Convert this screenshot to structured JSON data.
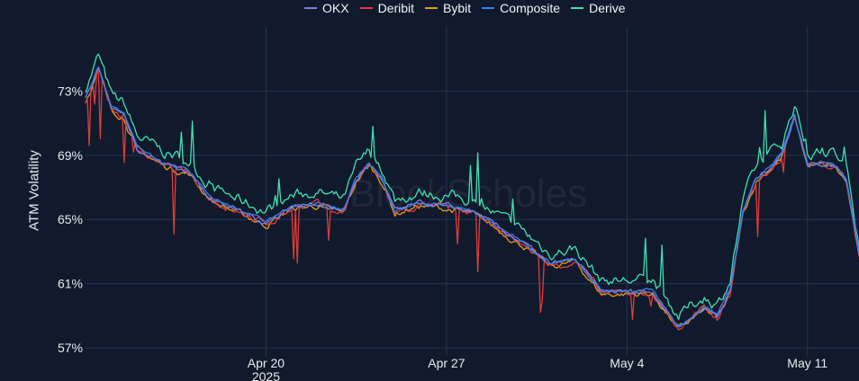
{
  "chart_data": {
    "type": "line",
    "ylabel": "ATM Volatility",
    "y_unit": "%",
    "ylim": [
      56.5,
      77
    ],
    "y_ticks": [
      57,
      61,
      65,
      69,
      73
    ],
    "y_tick_labels": [
      "57%",
      "61%",
      "65%",
      "69%",
      "73%"
    ],
    "xlim": [
      "2025-04-13",
      "2025-05-13"
    ],
    "x_ticks": [
      {
        "date": "2025-04-20",
        "label": "Apr 20",
        "sublabel": "2025"
      },
      {
        "date": "2025-04-27",
        "label": "Apr 27",
        "sublabel": ""
      },
      {
        "date": "2025-05-04",
        "label": "May 4",
        "sublabel": ""
      },
      {
        "date": "2025-05-11",
        "label": "May 11",
        "sublabel": ""
      }
    ],
    "grid": true,
    "legend_position": "top-center",
    "watermark": "BlockScholes",
    "series": [
      {
        "name": "OKX",
        "color": "#7b7fe0",
        "offset": 0.0,
        "noise": 0.25
      },
      {
        "name": "Deribit",
        "color": "#e03b3b",
        "offset": -0.1,
        "noise": 0.35
      },
      {
        "name": "Bybit",
        "color": "#e49a22",
        "offset": -0.15,
        "noise": 0.3
      },
      {
        "name": "Composite",
        "color": "#3b7fe8",
        "offset": 0.05,
        "noise": 0.15
      },
      {
        "name": "Derive",
        "color": "#3fe0b0",
        "offset": 0.7,
        "noise": 0.55
      }
    ],
    "composite_points": [
      {
        "x": "2025-04-13",
        "y": 72.5
      },
      {
        "x": "2025-04-13T12:00",
        "y": 74.5
      },
      {
        "x": "2025-04-14",
        "y": 72.0
      },
      {
        "x": "2025-04-14T12:00",
        "y": 71.5
      },
      {
        "x": "2025-04-15",
        "y": 69.5
      },
      {
        "x": "2025-04-16",
        "y": 68.5
      },
      {
        "x": "2025-04-17",
        "y": 68.0
      },
      {
        "x": "2025-04-17T12:00",
        "y": 67.0
      },
      {
        "x": "2025-04-18",
        "y": 66.2
      },
      {
        "x": "2025-04-19",
        "y": 65.5
      },
      {
        "x": "2025-04-20",
        "y": 64.8
      },
      {
        "x": "2025-04-21",
        "y": 65.8
      },
      {
        "x": "2025-04-22",
        "y": 66.0
      },
      {
        "x": "2025-04-23",
        "y": 65.5
      },
      {
        "x": "2025-04-23T12:00",
        "y": 67.5
      },
      {
        "x": "2025-04-24",
        "y": 68.5
      },
      {
        "x": "2025-04-24T12:00",
        "y": 67.5
      },
      {
        "x": "2025-04-25",
        "y": 65.5
      },
      {
        "x": "2025-04-26",
        "y": 66.0
      },
      {
        "x": "2025-04-27",
        "y": 65.8
      },
      {
        "x": "2025-04-28",
        "y": 65.5
      },
      {
        "x": "2025-04-29",
        "y": 64.5
      },
      {
        "x": "2025-04-30",
        "y": 63.5
      },
      {
        "x": "2025-05-01",
        "y": 62.2
      },
      {
        "x": "2025-05-02",
        "y": 62.5
      },
      {
        "x": "2025-05-03",
        "y": 60.5
      },
      {
        "x": "2025-05-04",
        "y": 60.5
      },
      {
        "x": "2025-05-05",
        "y": 60.5
      },
      {
        "x": "2025-05-06",
        "y": 58.3
      },
      {
        "x": "2025-05-07",
        "y": 59.5
      },
      {
        "x": "2025-05-07T12:00",
        "y": 59.0
      },
      {
        "x": "2025-05-08",
        "y": 60.5
      },
      {
        "x": "2025-05-08T12:00",
        "y": 65.5
      },
      {
        "x": "2025-05-09",
        "y": 67.5
      },
      {
        "x": "2025-05-10",
        "y": 69.0
      },
      {
        "x": "2025-05-10T12:00",
        "y": 71.5
      },
      {
        "x": "2025-05-11",
        "y": 68.5
      },
      {
        "x": "2025-05-12",
        "y": 68.5
      },
      {
        "x": "2025-05-12T12:00",
        "y": 67.5
      },
      {
        "x": "2025-05-13",
        "y": 63.0
      }
    ]
  }
}
